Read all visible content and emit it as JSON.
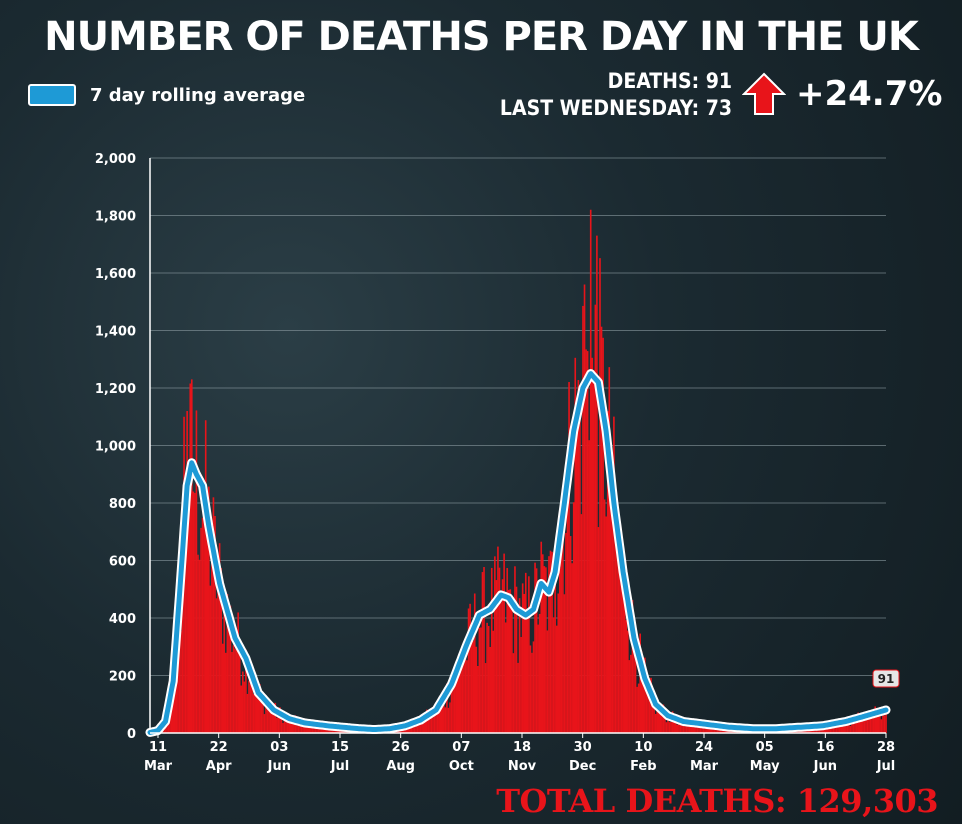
{
  "header": {
    "title": "NUMBER OF DEATHS PER DAY IN THE UK",
    "legend_label": "7 day rolling average",
    "deaths_line": "DEATHS: 91",
    "last_week_line": "LAST WEDNESDAY: 73",
    "change": "+24.7%",
    "total": "TOTAL DEATHS: 129,303"
  },
  "colors": {
    "bars": "#e8141a",
    "line": "#1e9ad6",
    "line_outline": "#ffffff",
    "grid": "#8a9aa0",
    "text": "#ffffff",
    "accent_red": "#e8141a"
  },
  "icons": {
    "up_arrow": "up-arrow-icon"
  },
  "chart_data": {
    "type": "bar",
    "title": "NUMBER OF DEATHS PER DAY IN THE UK",
    "ylim": [
      0,
      2000
    ],
    "yticks": [
      0,
      200,
      400,
      600,
      800,
      1000,
      1200,
      1400,
      1600,
      1800,
      2000
    ],
    "ytick_labels": [
      "0",
      "200",
      "400",
      "600",
      "800",
      "1,000",
      "1,200",
      "1,400",
      "1,600",
      "1,800",
      "2,000"
    ],
    "xticks": [
      {
        "day": "11",
        "month": "Mar"
      },
      {
        "day": "22",
        "month": "Apr"
      },
      {
        "day": "03",
        "month": "Jun"
      },
      {
        "day": "15",
        "month": "Jul"
      },
      {
        "day": "26",
        "month": "Aug"
      },
      {
        "day": "07",
        "month": "Oct"
      },
      {
        "day": "18",
        "month": "Nov"
      },
      {
        "day": "30",
        "month": "Dec"
      },
      {
        "day": "10",
        "month": "Feb"
      },
      {
        "day": "24",
        "month": "Mar"
      },
      {
        "day": "05",
        "month": "May"
      },
      {
        "day": "16",
        "month": "Jun"
      },
      {
        "day": "28",
        "month": "Jul"
      }
    ],
    "series": [
      {
        "name": "7 day rolling average",
        "type": "line",
        "points": [
          [
            0,
            2
          ],
          [
            5,
            8
          ],
          [
            10,
            40
          ],
          [
            15,
            180
          ],
          [
            20,
            550
          ],
          [
            24,
            860
          ],
          [
            27,
            940
          ],
          [
            30,
            900
          ],
          [
            34,
            860
          ],
          [
            38,
            720
          ],
          [
            45,
            520
          ],
          [
            55,
            330
          ],
          [
            62,
            260
          ],
          [
            70,
            140
          ],
          [
            80,
            80
          ],
          [
            90,
            50
          ],
          [
            100,
            35
          ],
          [
            115,
            25
          ],
          [
            125,
            20
          ],
          [
            135,
            15
          ],
          [
            145,
            12
          ],
          [
            155,
            15
          ],
          [
            165,
            25
          ],
          [
            175,
            45
          ],
          [
            185,
            80
          ],
          [
            195,
            170
          ],
          [
            205,
            310
          ],
          [
            213,
            410
          ],
          [
            220,
            430
          ],
          [
            227,
            480
          ],
          [
            232,
            470
          ],
          [
            237,
            430
          ],
          [
            243,
            410
          ],
          [
            248,
            430
          ],
          [
            253,
            520
          ],
          [
            258,
            490
          ],
          [
            262,
            560
          ],
          [
            268,
            800
          ],
          [
            274,
            1050
          ],
          [
            280,
            1200
          ],
          [
            285,
            1250
          ],
          [
            290,
            1220
          ],
          [
            295,
            1050
          ],
          [
            300,
            800
          ],
          [
            306,
            560
          ],
          [
            313,
            330
          ],
          [
            320,
            190
          ],
          [
            327,
            100
          ],
          [
            335,
            60
          ],
          [
            345,
            40
          ],
          [
            360,
            30
          ],
          [
            375,
            20
          ],
          [
            390,
            15
          ],
          [
            405,
            15
          ],
          [
            420,
            20
          ],
          [
            435,
            25
          ],
          [
            450,
            40
          ],
          [
            460,
            55
          ],
          [
            476,
            80
          ]
        ]
      }
    ],
    "bars_series": {
      "name": "Daily deaths",
      "peaks": [
        {
          "x": 22,
          "value": 1100
        },
        {
          "x": 24,
          "value": 1120
        },
        {
          "x": 27,
          "value": 1230
        },
        {
          "x": 262,
          "value": 650
        },
        {
          "x": 281,
          "value": 1560
        },
        {
          "x": 285,
          "value": 1820
        },
        {
          "x": 289,
          "value": 1730
        }
      ]
    },
    "last_value": 91,
    "last_value_label": "91",
    "x_range_days": [
      0,
      476
    ]
  }
}
